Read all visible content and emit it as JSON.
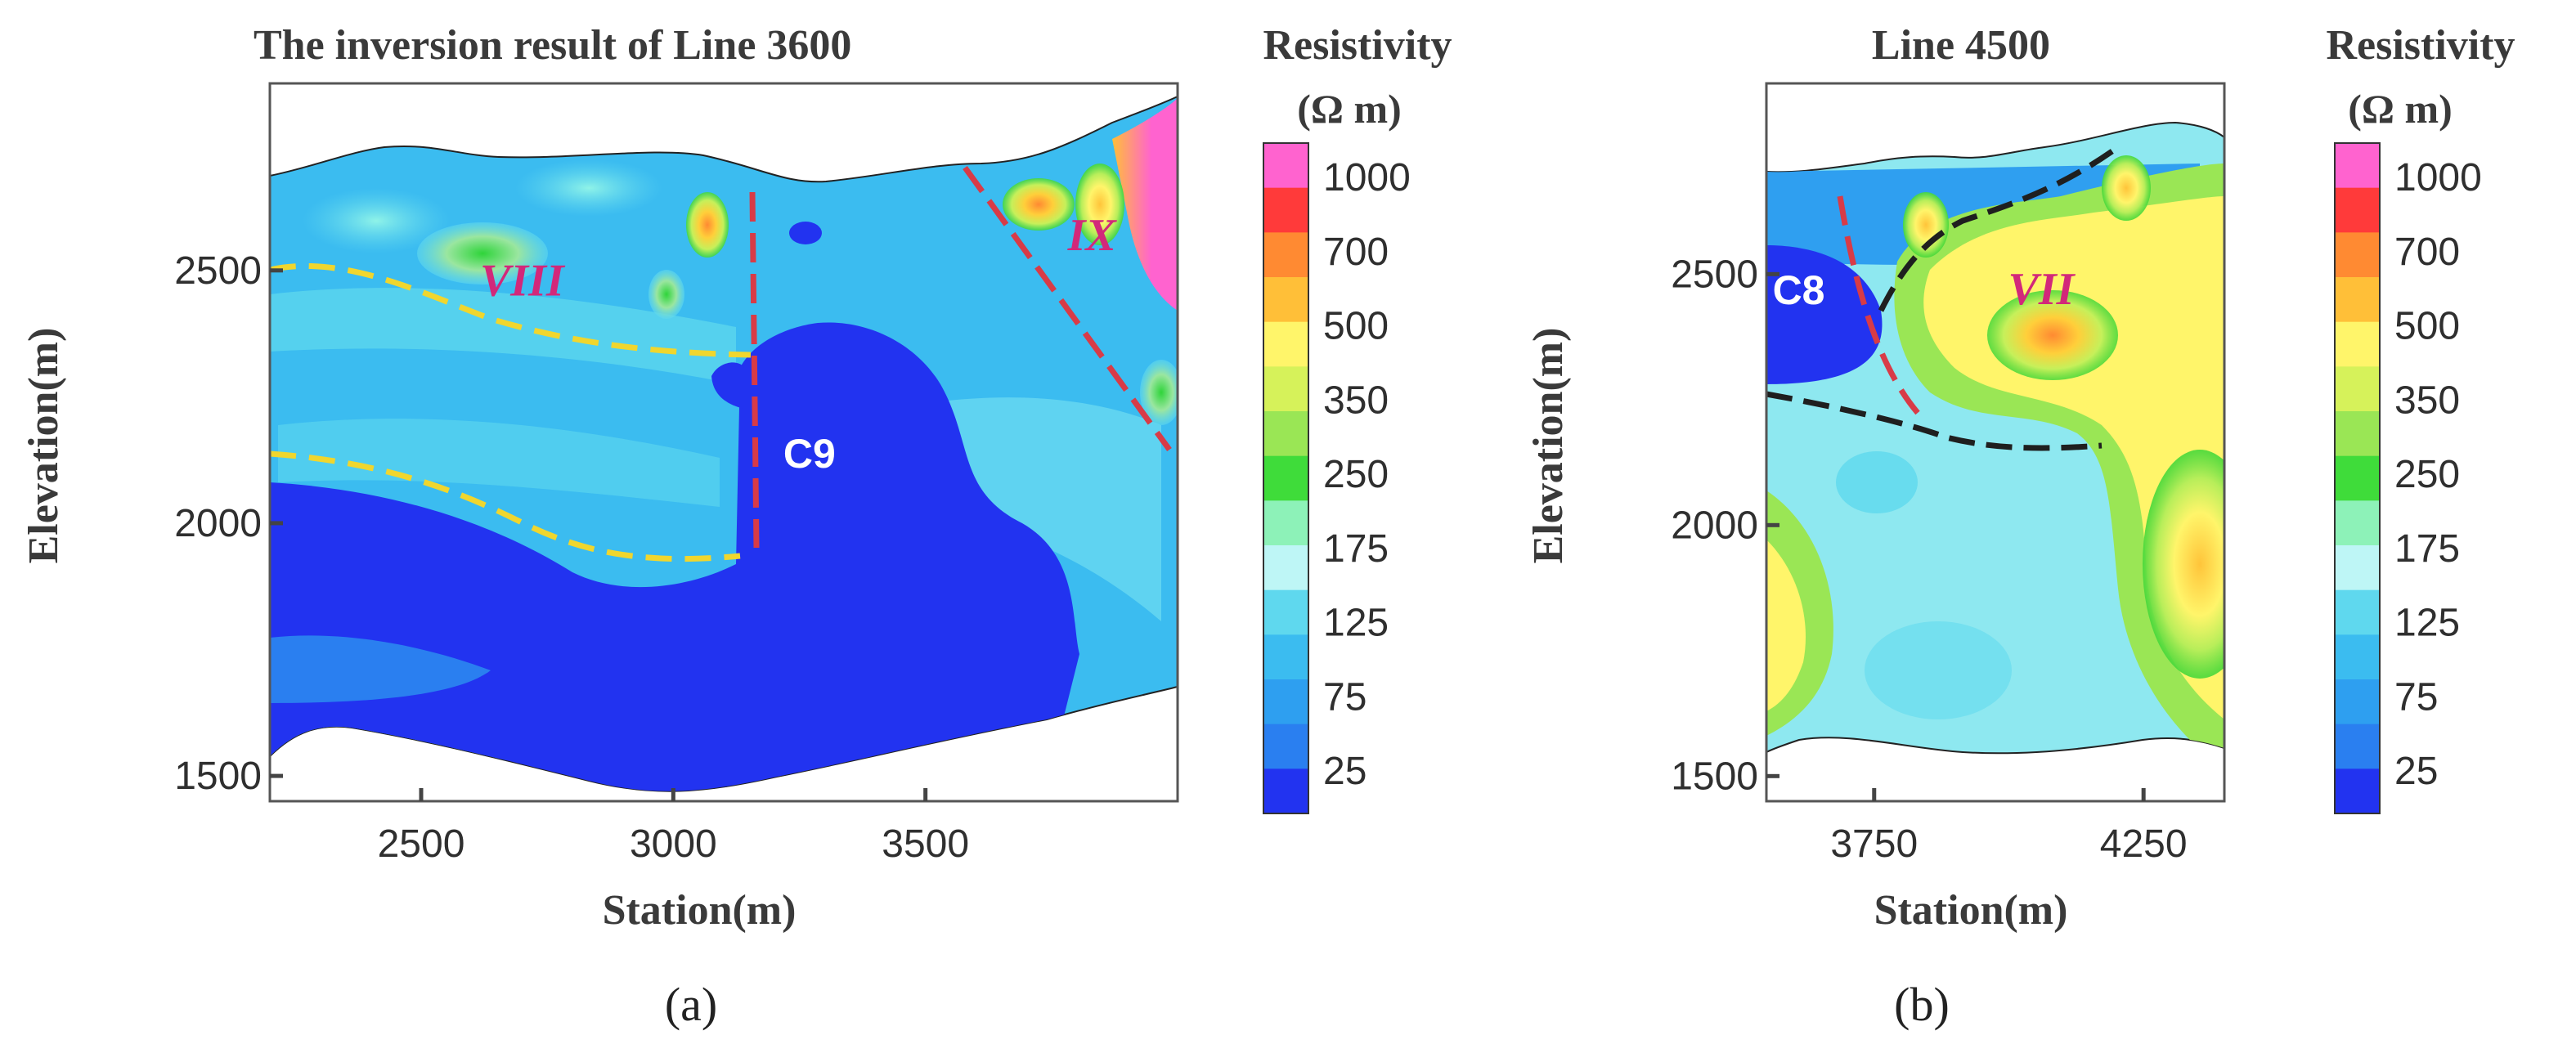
{
  "chart_data": [
    {
      "type": "heatmap",
      "panel": "(a)",
      "title": "The inversion result of Line 3600",
      "xlabel": "Station(m)",
      "ylabel": "Elevation(m)",
      "xlim": [
        2200,
        4000
      ],
      "ylim": [
        1450,
        2870
      ],
      "xticks": [
        2500,
        3000,
        3500
      ],
      "yticks": [
        1500,
        2000,
        2500
      ],
      "annotations": [
        {
          "text": "VIII",
          "x": 2700,
          "y": 2450,
          "color": "#d2287a"
        },
        {
          "text": "IX",
          "x": 3830,
          "y": 2540,
          "color": "#d2287a"
        },
        {
          "text": "C9",
          "x": 3270,
          "y": 2110,
          "color": "#ffffff"
        }
      ],
      "colorbar": {
        "title": "Resistivity",
        "unit": "(Ω m)",
        "ticks": [
          "1000",
          "700",
          "500",
          "350",
          "250",
          "175",
          "125",
          "75",
          "25"
        ]
      },
      "caption": "(a)"
    },
    {
      "type": "heatmap",
      "panel": "(b)",
      "title": "Line 4500",
      "xlabel": "Station(m)",
      "ylabel": "Elevation(m)",
      "xlim": [
        3550,
        4400
      ],
      "ylim": [
        1450,
        2880
      ],
      "xticks": [
        3750,
        4250
      ],
      "yticks": [
        1500,
        2000,
        2500
      ],
      "annotations": [
        {
          "text": "VII",
          "x": 4060,
          "y": 2440,
          "color": "#d2287a"
        },
        {
          "text": "C8",
          "x": 3610,
          "y": 2440,
          "color": "#ffffff"
        }
      ],
      "colorbar": {
        "title": "Resistivity",
        "unit": "(Ω m)",
        "ticks": [
          "1000",
          "700",
          "500",
          "350",
          "250",
          "175",
          "125",
          "75",
          "25"
        ]
      },
      "caption": "(b)"
    }
  ],
  "colors": {
    "scale": [
      "#ff63cf",
      "#ff3a3a",
      "#ff8a32",
      "#ffbf38",
      "#fff56a",
      "#d6f25a",
      "#9ae655",
      "#3fdc3a",
      "#8df2b8",
      "#bef6f6",
      "#5fd8ee",
      "#3bbcf0",
      "#2e9ff0",
      "#2a7ff0",
      "#2233f0"
    ],
    "fault_red": "#d83b47",
    "boundary_yellow": "#f0d62e",
    "boundary_black": "#1f1f1f"
  }
}
